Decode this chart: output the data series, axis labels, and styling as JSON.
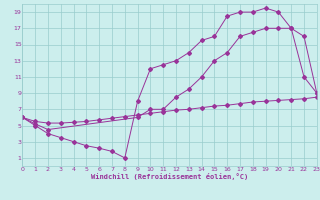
{
  "background_color": "#cceeed",
  "line_color": "#993399",
  "grid_color": "#99cccc",
  "xlabel": "Windchill (Refroidissement éolien,°C)",
  "ylabel_ticks": [
    1,
    3,
    5,
    7,
    9,
    11,
    13,
    15,
    17,
    19
  ],
  "xlabel_ticks": [
    0,
    1,
    2,
    3,
    4,
    5,
    6,
    7,
    8,
    9,
    10,
    11,
    12,
    13,
    14,
    15,
    16,
    17,
    18,
    19,
    20,
    21,
    22,
    23
  ],
  "line1_x": [
    0,
    1,
    2,
    3,
    4,
    5,
    6,
    7,
    8,
    9,
    10,
    11,
    12,
    13,
    14,
    15,
    16,
    17,
    18,
    19,
    20,
    21,
    22,
    23
  ],
  "line1_y": [
    6,
    5,
    4,
    3.5,
    3,
    2.5,
    2.2,
    1.8,
    1,
    8,
    12,
    12.5,
    13,
    14,
    15.5,
    16,
    18.5,
    19,
    19,
    19.5,
    19,
    17,
    11,
    9
  ],
  "line2_x": [
    0,
    1,
    2,
    9,
    10,
    11,
    12,
    13,
    14,
    15,
    16,
    17,
    18,
    19,
    20,
    21,
    22,
    23
  ],
  "line2_y": [
    6,
    5.2,
    4.5,
    6,
    7,
    7,
    8.5,
    9.5,
    11,
    13,
    14,
    16,
    16.5,
    17,
    17,
    17,
    16,
    9
  ],
  "line3_x": [
    0,
    1,
    2,
    3,
    4,
    5,
    6,
    7,
    8,
    9,
    10,
    11,
    12,
    13,
    14,
    15,
    16,
    17,
    18,
    19,
    20,
    21,
    22,
    23
  ],
  "line3_y": [
    6,
    5.5,
    5.3,
    5.3,
    5.4,
    5.5,
    5.7,
    5.9,
    6.1,
    6.3,
    6.5,
    6.7,
    6.9,
    7.0,
    7.2,
    7.4,
    7.5,
    7.7,
    7.9,
    8.0,
    8.1,
    8.2,
    8.3,
    8.5
  ],
  "xlim": [
    0,
    23
  ],
  "ylim": [
    0,
    20
  ],
  "figsize": [
    3.2,
    2.0
  ],
  "dpi": 100
}
